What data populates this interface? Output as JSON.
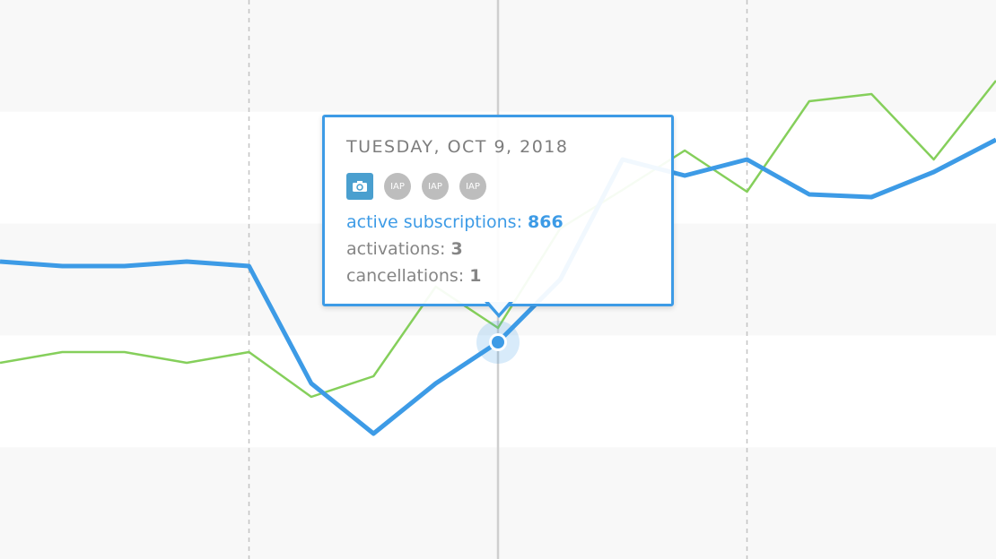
{
  "chart_data": {
    "type": "line",
    "x_index": [
      0,
      1,
      2,
      3,
      4,
      5,
      6,
      7,
      8,
      9,
      10,
      11,
      12,
      13,
      14,
      15,
      16
    ],
    "series": [
      {
        "key": "active_subscriptions",
        "color": "#3d9be6",
        "values": [
          332,
          327,
          327,
          332,
          327,
          196,
          140,
          196,
          242,
          312,
          446,
          428,
          446,
          407,
          404,
          432,
          468
        ]
      },
      {
        "key": "activations",
        "color": "#85cf5b",
        "values": [
          219,
          231,
          231,
          219,
          231,
          181,
          204,
          304,
          258,
          369,
          412,
          456,
          410,
          511,
          519,
          446,
          534
        ]
      }
    ],
    "ylim": [
      0,
      624
    ],
    "highlight_index": 8,
    "grid": "alternating horizontal bands, dashed vertical lines"
  },
  "tooltip": {
    "date": "TUESDAY, OCT 9, 2018",
    "icons": [
      "camera-icon",
      "IAP",
      "IAP",
      "IAP"
    ],
    "active_label": "active subscriptions:",
    "active_value": "866",
    "activations_label": "activations:",
    "activations_value": "3",
    "cancellations_label": "cancellations:",
    "cancellations_value": "1"
  }
}
